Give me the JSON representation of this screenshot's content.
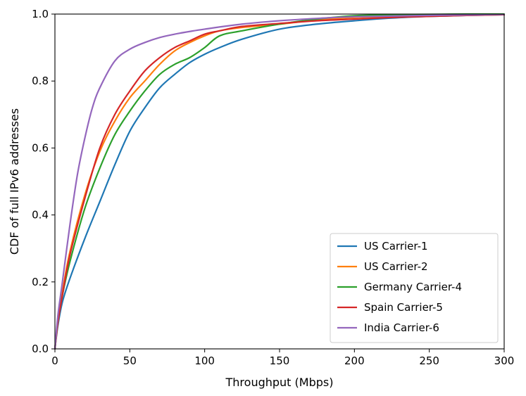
{
  "chart_data": {
    "type": "line",
    "title": "",
    "xlabel": "Throughput (Mbps)",
    "ylabel": "CDF of full IPv6 addresses",
    "xlim": [
      0,
      300
    ],
    "ylim": [
      0,
      1.0
    ],
    "xticks": [
      0,
      50,
      100,
      150,
      200,
      250,
      300
    ],
    "yticks": [
      0.0,
      0.2,
      0.4,
      0.6,
      0.8,
      1.0
    ],
    "xtick_labels": [
      "0",
      "50",
      "100",
      "150",
      "200",
      "250",
      "300"
    ],
    "ytick_labels": [
      "0.0",
      "0.2",
      "0.4",
      "0.6",
      "0.8",
      "1.0"
    ],
    "grid": false,
    "legend_position": "lower-right",
    "series": [
      {
        "name": "US Carrier-1",
        "color": "#1f77b4",
        "x": [
          0,
          2,
          5,
          10,
          20,
          30,
          40,
          50,
          60,
          70,
          80,
          90,
          100,
          110,
          125,
          150,
          175,
          200,
          225,
          250,
          275,
          300
        ],
        "y": [
          0,
          0.07,
          0.14,
          0.21,
          0.33,
          0.44,
          0.55,
          0.65,
          0.72,
          0.78,
          0.82,
          0.855,
          0.88,
          0.9,
          0.925,
          0.955,
          0.97,
          0.98,
          0.988,
          0.993,
          0.996,
          0.998
        ]
      },
      {
        "name": "US Carrier-2",
        "color": "#ff7f0e",
        "x": [
          0,
          2,
          5,
          10,
          20,
          30,
          40,
          50,
          60,
          70,
          80,
          90,
          100,
          110,
          125,
          150,
          175,
          200,
          225,
          250,
          275,
          300
        ],
        "y": [
          0,
          0.08,
          0.17,
          0.29,
          0.46,
          0.59,
          0.68,
          0.75,
          0.8,
          0.85,
          0.89,
          0.915,
          0.935,
          0.95,
          0.96,
          0.97,
          0.982,
          0.99,
          0.993,
          0.995,
          0.997,
          0.998
        ]
      },
      {
        "name": "Germany Carrier-4",
        "color": "#2ca02c",
        "x": [
          0,
          2,
          5,
          10,
          20,
          30,
          40,
          50,
          60,
          70,
          80,
          90,
          100,
          110,
          125,
          150,
          175,
          200,
          225,
          250,
          275,
          300
        ],
        "y": [
          0,
          0.08,
          0.16,
          0.26,
          0.42,
          0.54,
          0.64,
          0.71,
          0.77,
          0.82,
          0.85,
          0.87,
          0.9,
          0.935,
          0.95,
          0.97,
          0.985,
          0.995,
          0.998,
          0.999,
          1.0,
          1.0
        ]
      },
      {
        "name": "Spain Carrier-5",
        "color": "#d62728",
        "x": [
          0,
          2,
          5,
          10,
          20,
          30,
          40,
          50,
          60,
          70,
          80,
          90,
          100,
          110,
          125,
          150,
          175,
          200,
          225,
          250,
          275,
          300
        ],
        "y": [
          0,
          0.08,
          0.16,
          0.28,
          0.45,
          0.6,
          0.7,
          0.77,
          0.83,
          0.87,
          0.9,
          0.92,
          0.94,
          0.95,
          0.963,
          0.972,
          0.98,
          0.985,
          0.99,
          0.993,
          0.996,
          0.998
        ]
      },
      {
        "name": "India Carrier-6",
        "color": "#9467bd",
        "x": [
          0,
          2,
          5,
          10,
          15,
          20,
          25,
          30,
          40,
          50,
          60,
          70,
          80,
          90,
          100,
          125,
          150,
          175,
          200,
          250,
          300
        ],
        "y": [
          0,
          0.1,
          0.2,
          0.37,
          0.52,
          0.63,
          0.72,
          0.78,
          0.86,
          0.895,
          0.915,
          0.93,
          0.94,
          0.948,
          0.955,
          0.97,
          0.98,
          0.987,
          0.992,
          0.996,
          0.999
        ]
      }
    ]
  }
}
